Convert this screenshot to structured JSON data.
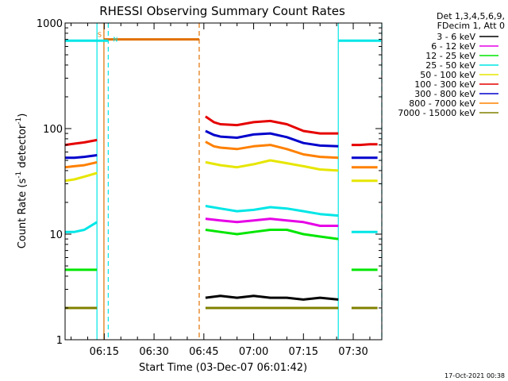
{
  "chart_data": {
    "type": "line",
    "title": "RHESSI Observing Summary Count Rates",
    "xlabel": "Start Time (03-Dec-07 06:01:42)",
    "ylabel_main": "Count Rate (s",
    "ylabel_sup1": "-1",
    "ylabel_mid": " detector",
    "ylabel_sup2": "-1",
    "ylabel_end": ")",
    "y_scale": "log",
    "ylim": [
      1,
      1000
    ],
    "y_ticks": [
      {
        "value": 1,
        "label": "1"
      },
      {
        "value": 10,
        "label": "10"
      },
      {
        "value": 100,
        "label": "100"
      },
      {
        "value": 1000,
        "label": "1000"
      }
    ],
    "xlim_minutes": [
      363.2,
      458.6
    ],
    "x_ticks": [
      {
        "minutes": 375,
        "label": "06:15"
      },
      {
        "minutes": 390,
        "label": "06:30"
      },
      {
        "minutes": 405,
        "label": "06:45"
      },
      {
        "minutes": 420,
        "label": "07:00"
      },
      {
        "minutes": 435,
        "label": "07:15"
      },
      {
        "minutes": 450,
        "label": "07:30"
      }
    ],
    "legend_header": [
      "Det 1,3,4,5,6,9,",
      "FDecim 1, Att 0"
    ],
    "legend_placement": "right",
    "timestamp": "17-Oct-2021 00:38",
    "series": [
      {
        "name": "3 - 6 keV",
        "color": "#000000",
        "segments": [
          {
            "x": [
              405.5,
              410,
              415,
              420,
              425,
              430,
              435,
              440,
              445.5
            ],
            "y": [
              2.5,
              2.6,
              2.5,
              2.6,
              2.5,
              2.5,
              2.4,
              2.5,
              2.4
            ]
          }
        ]
      },
      {
        "name": "6 - 12 keV",
        "color": "#e600e6",
        "segments": [
          {
            "x": [
              405.5,
              410,
              415,
              420,
              425,
              430,
              435,
              440,
              445.5
            ],
            "y": [
              14,
              13.5,
              13,
              13.5,
              14,
              13.5,
              13,
              12,
              12
            ]
          }
        ]
      },
      {
        "name": "12 - 25 keV",
        "color": "#00e600",
        "segments": [
          {
            "x": [
              363.2,
              366,
              369,
              372,
              372.8
            ],
            "y": [
              4.6,
              4.6,
              4.6,
              4.6,
              4.6
            ]
          },
          {
            "x": [
              405.5,
              410,
              415,
              420,
              425,
              430,
              435,
              440,
              445.5
            ],
            "y": [
              11,
              10.5,
              10,
              10.5,
              11,
              11,
              10,
              9.5,
              9
            ]
          },
          {
            "x": [
              449.5,
              452,
              455,
              457.3
            ],
            "y": [
              4.6,
              4.6,
              4.6,
              4.6
            ]
          }
        ]
      },
      {
        "name": "25 - 50 keV",
        "color": "#00e6e6",
        "segments": [
          {
            "x": [
              363.2,
              366,
              369,
              372.8
            ],
            "y": [
              10.5,
              10.5,
              11,
              13
            ]
          },
          {
            "x": [
              405.5,
              410,
              415,
              420,
              425,
              430,
              435,
              440,
              445.5
            ],
            "y": [
              18.5,
              17.5,
              16.5,
              17,
              18,
              17.5,
              16.5,
              15.5,
              15
            ]
          },
          {
            "x": [
              449.5,
              452,
              455,
              457.3
            ],
            "y": [
              10.5,
              10.5,
              10.5,
              10.5
            ]
          }
        ]
      },
      {
        "name": "50 - 100 keV",
        "color": "#e6e600",
        "segments": [
          {
            "x": [
              363.2,
              366,
              369,
              372.8
            ],
            "y": [
              32,
              33,
              35,
              38
            ]
          },
          {
            "x": [
              405.5,
              410,
              415,
              420,
              425,
              430,
              435,
              440,
              445.5
            ],
            "y": [
              48,
              45,
              43,
              46,
              50,
              47,
              44,
              41,
              40
            ]
          },
          {
            "x": [
              449.5,
              452,
              455,
              457.3
            ],
            "y": [
              32,
              32,
              32,
              32
            ]
          }
        ]
      },
      {
        "name": "100 - 300 keV",
        "color": "#e60000",
        "segments": [
          {
            "x": [
              363.2,
              366,
              369,
              372.8
            ],
            "y": [
              70,
              72,
              74,
              78
            ]
          },
          {
            "x": [
              405.5,
              408,
              410,
              415,
              420,
              425,
              430,
              435,
              440,
              445.5
            ],
            "y": [
              130,
              115,
              110,
              108,
              115,
              118,
              110,
              95,
              90,
              90
            ]
          },
          {
            "x": [
              449.5,
              452,
              455,
              457.3
            ],
            "y": [
              70,
              70,
              71,
              71
            ]
          }
        ]
      },
      {
        "name": "300 - 800 keV",
        "color": "#0000cc",
        "segments": [
          {
            "x": [
              363.2,
              366,
              369,
              372.8
            ],
            "y": [
              53,
              53,
              54,
              56
            ]
          },
          {
            "x": [
              405.5,
              408,
              410,
              415,
              420,
              425,
              430,
              435,
              440,
              445.5
            ],
            "y": [
              95,
              87,
              84,
              82,
              88,
              90,
              83,
              73,
              69,
              68
            ]
          },
          {
            "x": [
              449.5,
              452,
              455,
              457.3
            ],
            "y": [
              53,
              53,
              53,
              53
            ]
          }
        ]
      },
      {
        "name": "800 - 7000 keV",
        "color": "#ff8000",
        "segments": [
          {
            "x": [
              363.2,
              366,
              369,
              372.8
            ],
            "y": [
              43,
              44,
              45,
              48
            ]
          },
          {
            "x": [
              405.5,
              408,
              410,
              415,
              420,
              425,
              430,
              435,
              440,
              445.5
            ],
            "y": [
              75,
              68,
              66,
              64,
              68,
              70,
              64,
              57,
              54,
              53
            ]
          },
          {
            "x": [
              449.5,
              452,
              455,
              457.3
            ],
            "y": [
              43,
              43,
              43,
              43
            ]
          }
        ]
      },
      {
        "name": "7000 - 15000 keV",
        "color": "#808000",
        "segments": [
          {
            "x": [
              363.2,
              366,
              369,
              372.8
            ],
            "y": [
              2.0,
              2.0,
              2.0,
              2.0
            ]
          },
          {
            "x": [
              405.5,
              410,
              415,
              420,
              425,
              430,
              435,
              440,
              445.5
            ],
            "y": [
              2.0,
              2.0,
              2.0,
              2.0,
              2.0,
              2.0,
              2.0,
              2.0,
              2.0
            ]
          },
          {
            "x": [
              449.5,
              452,
              455,
              457.3
            ],
            "y": [
              2.0,
              2.0,
              2.0,
              2.0
            ]
          }
        ]
      }
    ],
    "flag_bars": [
      {
        "label": "S",
        "color": "#e07000",
        "x": [
          374.9,
          403.6
        ],
        "y": 700
      },
      {
        "label": "N",
        "color": "#00e6e6",
        "x": [
          363.2,
          376.2
        ],
        "y": 680
      },
      {
        "label": "",
        "color": "#00e6e6",
        "x": [
          445.5,
          458.6
        ],
        "y": 680
      }
    ],
    "vertical_markers": [
      {
        "x": 372.8,
        "color": "#00e6e6",
        "style": "solid"
      },
      {
        "x": 374.9,
        "color": "#e07000",
        "style": "solid"
      },
      {
        "x": 376.2,
        "color": "#00e6e6",
        "style": "dashed"
      },
      {
        "x": 403.6,
        "color": "#e07000",
        "style": "dashed"
      },
      {
        "x": 445.5,
        "color": "#00e6e6",
        "style": "solid"
      },
      {
        "x": 458.6,
        "color": "#00e6e6",
        "style": "dashed"
      }
    ]
  }
}
